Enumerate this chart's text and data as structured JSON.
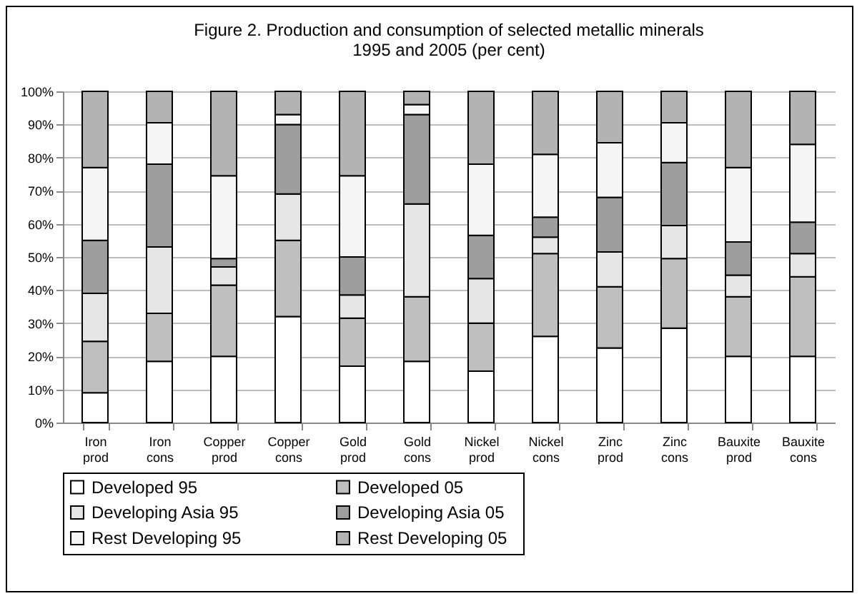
{
  "chart_data": {
    "type": "bar",
    "stacked": true,
    "title": "Figure 2. Production and consumption of  selected metallic minerals\n1995 and 2005  (per cent)",
    "categories": [
      "Iron prod",
      "Iron cons",
      "Copper prod",
      "Copper cons",
      "Gold prod",
      "Gold cons",
      "Nickel prod",
      "Nickel cons",
      "Zinc prod",
      "Zinc cons",
      "Bauxite prod",
      "Bauxite cons"
    ],
    "series": [
      {
        "name": "Developed 95",
        "color": "#ffffff",
        "values": [
          9,
          18.5,
          20,
          32,
          17,
          18.5,
          15.5,
          26,
          22.5,
          28.5,
          20,
          20
        ]
      },
      {
        "name": "Developed  05",
        "color": "#bfbfbf",
        "values": [
          15.5,
          14.5,
          21.5,
          23,
          14.5,
          19.5,
          14.5,
          25,
          18.5,
          21,
          18,
          24
        ]
      },
      {
        "name": "Developing Asia 95",
        "color": "#e6e6e6",
        "values": [
          14.5,
          20,
          5.5,
          14,
          7,
          28,
          13.5,
          5,
          10.5,
          10,
          6.5,
          7
        ]
      },
      {
        "name": "Developing Asia 05",
        "color": "#9e9e9e",
        "values": [
          16,
          25,
          2.5,
          21,
          11.5,
          27,
          13,
          6,
          16.5,
          19,
          10,
          9.5
        ]
      },
      {
        "name": "Rest Developing  95",
        "color": "#f5f5f5",
        "values": [
          22,
          12.5,
          25,
          3,
          24.5,
          3,
          21.5,
          19,
          16.5,
          12,
          22.5,
          23.5
        ]
      },
      {
        "name": "Rest  Developing  05",
        "color": "#b3b3b3",
        "values": [
          23,
          9.5,
          25.5,
          7,
          25.5,
          4,
          22,
          19,
          15.5,
          9.5,
          23,
          16
        ]
      }
    ],
    "ylim": [
      0,
      100
    ],
    "yticks": [
      {
        "value": 0,
        "label": "0%"
      },
      {
        "value": 10,
        "label": "10%"
      },
      {
        "value": 20,
        "label": "20%"
      },
      {
        "value": 30,
        "label": "30%"
      },
      {
        "value": 40,
        "label": "40%"
      },
      {
        "value": 50,
        "label": "50%"
      },
      {
        "value": 60,
        "label": "60%"
      },
      {
        "value": 70,
        "label": "70%"
      },
      {
        "value": 80,
        "label": "80%"
      },
      {
        "value": 90,
        "label": "90%"
      },
      {
        "value": 100,
        "label": "100%"
      }
    ],
    "grid": "y",
    "legend": "bottom"
  }
}
